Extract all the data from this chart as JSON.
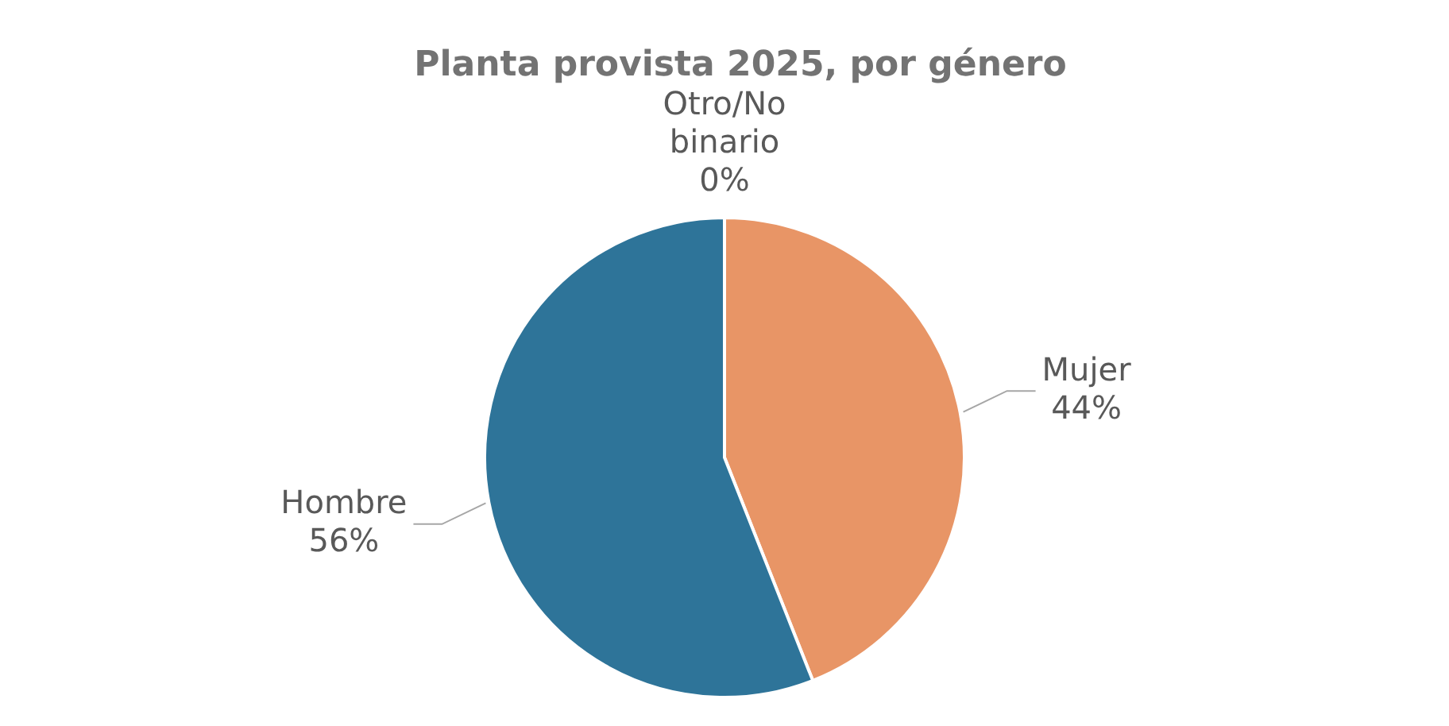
{
  "chart_data": {
    "type": "pie",
    "title": "Planta provista 2025, por género",
    "categories": [
      "Mujer",
      "Hombre",
      "Otro/No binario"
    ],
    "values": [
      44,
      56,
      0
    ],
    "colors": [
      "#e89566",
      "#2e7499",
      "#a5a5a5"
    ],
    "value_labels": [
      "44%",
      "56%",
      "0%"
    ],
    "legend": false
  }
}
